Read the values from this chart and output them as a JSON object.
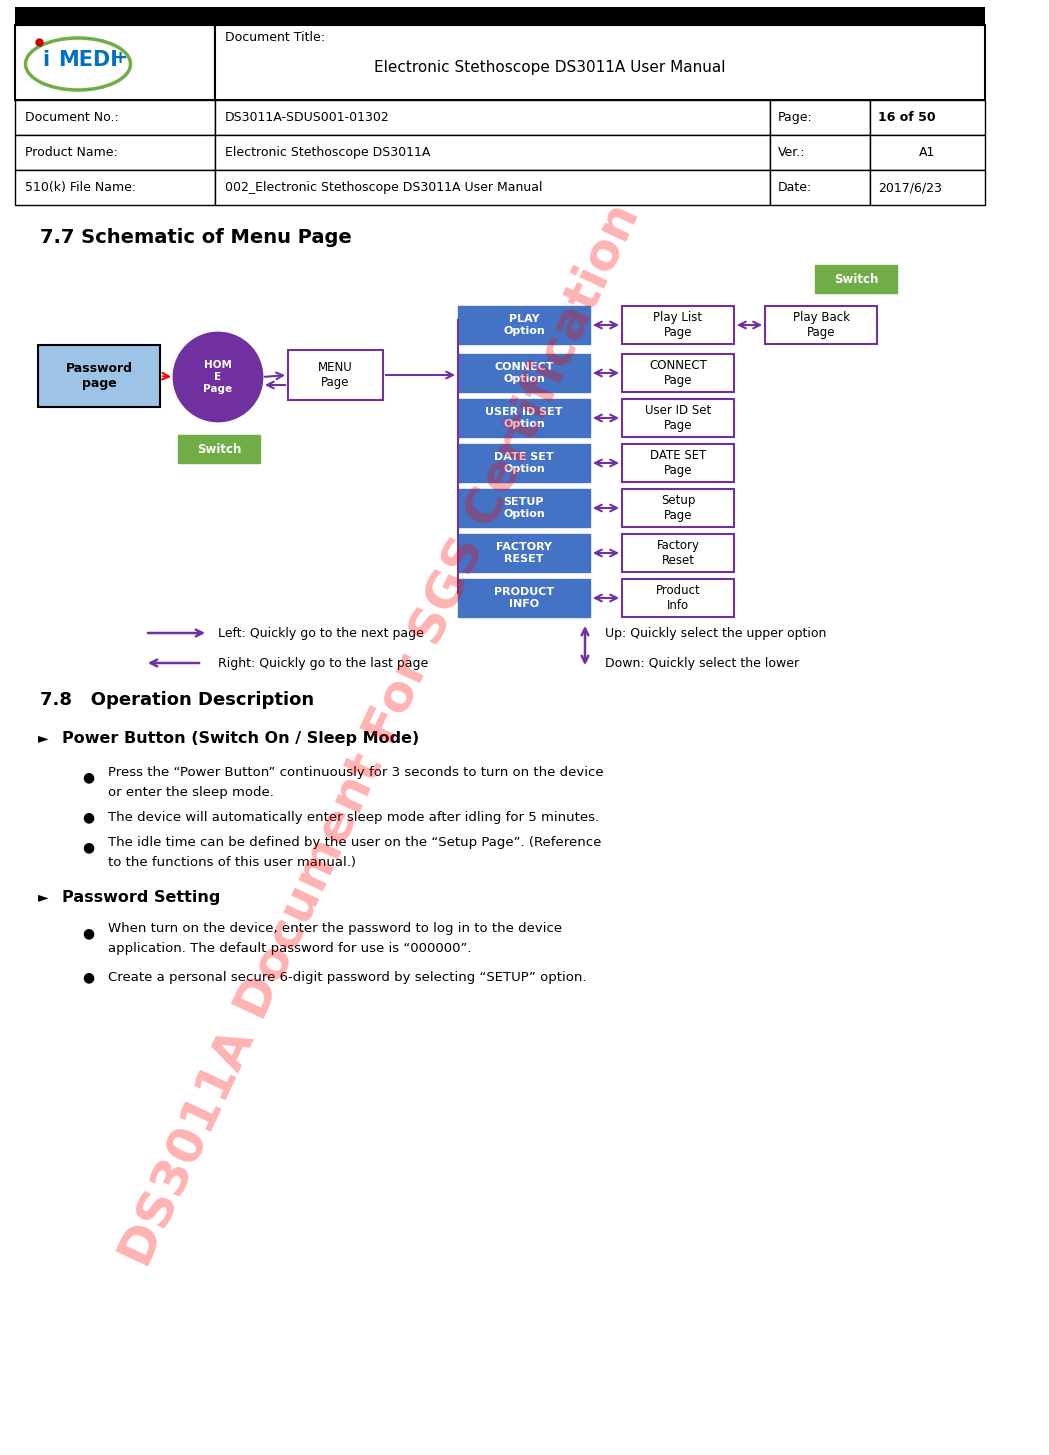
{
  "page_width": 10.49,
  "page_height": 14.55,
  "header_title": "Document Title:",
  "header_doc_name": "Electronic Stethoscope DS3011A User Manual",
  "header_doc_no_label": "Document No.:",
  "header_doc_no": "DS3011A-SDUS001-01302",
  "header_page_label": "Page:",
  "header_page": "16 of 50",
  "header_product_label": "Product Name:",
  "header_product": "Electronic Stethoscope DS3011A",
  "header_ver_label": "Ver.:",
  "header_ver": "A1",
  "header_510k_label": "510(k) File Name:",
  "header_510k": "002_Electronic Stethoscope DS3011A User Manual",
  "header_date_label": "Date:",
  "header_date": "2017/6/23",
  "section_77_title": "7.7 Schematic of Menu Page",
  "section_78_title": "7.8   Operation Description",
  "subsection_power": "Power Button (Switch On / Sleep Mode)",
  "subsection_password": "Password Setting",
  "bullet1a": "Press the “Power Button” continuously for 3 seconds to turn on the device",
  "bullet1b": "or enter the sleep mode.",
  "bullet2": "The device will automatically enter sleep mode after idling for 5 minutes.",
  "bullet3a": "The idle time can be defined by the user on the “Setup Page”. (Reference",
  "bullet3b": "to the functions of this user manual.)",
  "bullet4a": "When turn on the device, enter the password to log in to the device",
  "bullet4b": "application. The default password for use is “000000”.",
  "bullet5": "Create a personal secure 6-digit password by selecting “SETUP” option.",
  "legend_left": "Left: Quickly go to the next page",
  "legend_right": "Right: Quickly go to the last page",
  "legend_up": "Up: Quickly select the upper option",
  "legend_down": "Down: Quickly select the lower",
  "blue_box_color": "#4472C4",
  "purple_box_color": "#7030A0",
  "light_blue_box_color": "#9DC3E6",
  "green_box_color": "#70AD47",
  "logo_blue": "#0070C0",
  "logo_green": "#70AD47",
  "logo_red": "#CC0000"
}
